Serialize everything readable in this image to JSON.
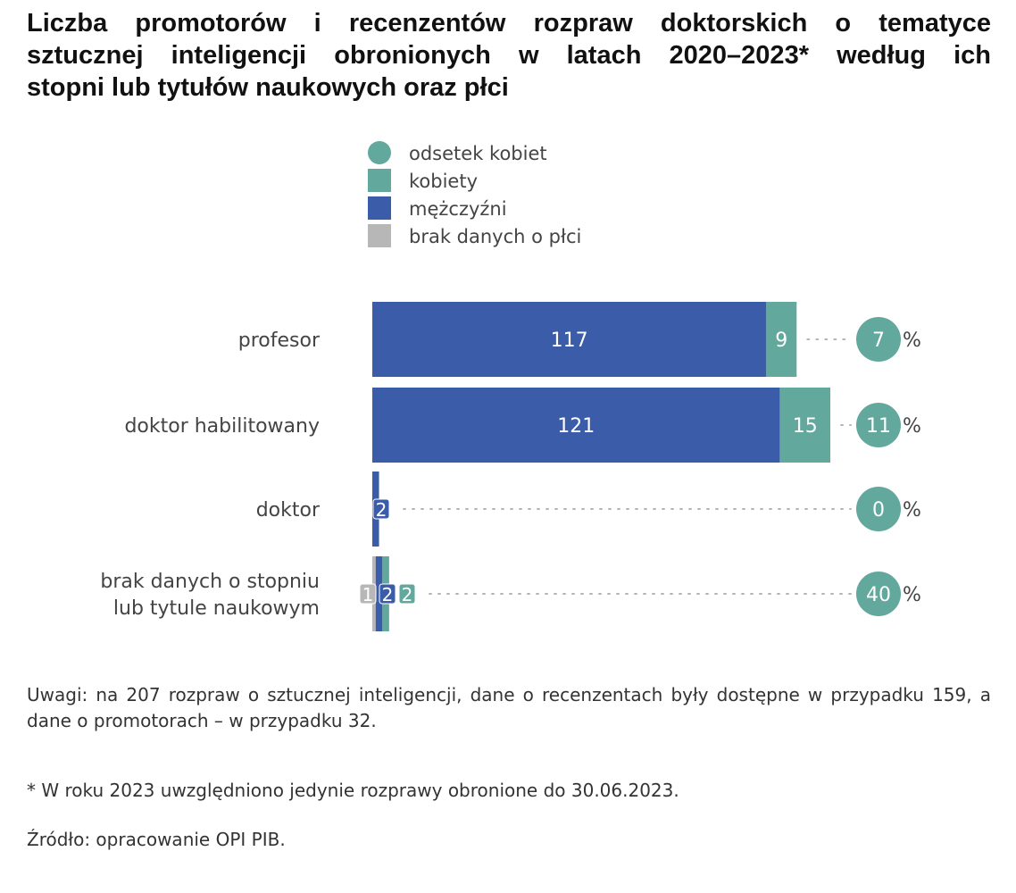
{
  "title_lines": [
    "Liczba promotorów i recenzentów rozpraw doktorskich o tematyce",
    "sztucznej inteligencji obronionych w latach 2020–2023* według ich",
    "stopni lub tytułów naukowych oraz płci"
  ],
  "colors": {
    "men": "#3b5ca8",
    "women": "#62a89d",
    "nodata": "#b7b7b7",
    "dots": "#b5b5b5"
  },
  "chart_data": {
    "type": "bar",
    "stacked": true,
    "orientation": "horizontal",
    "legend": [
      {
        "label": "odsetek kobiet",
        "shape": "circle",
        "color": "#62a89d"
      },
      {
        "label": "kobiety",
        "shape": "square",
        "color": "#62a89d"
      },
      {
        "label": "mężczyźni",
        "shape": "square",
        "color": "#3b5ca8"
      },
      {
        "label": "brak danych o płci",
        "shape": "square",
        "color": "#b7b7b7"
      }
    ],
    "legend_position": "top",
    "categories": [
      {
        "label_lines": [
          "profesor"
        ]
      },
      {
        "label_lines": [
          "doktor habilitowany"
        ]
      },
      {
        "label_lines": [
          "doktor"
        ]
      },
      {
        "label_lines": [
          "brak danych o stopniu",
          "lub tytule naukowym"
        ]
      }
    ],
    "series": [
      {
        "name": "brak danych o płci",
        "values": [
          0,
          0,
          0,
          1
        ]
      },
      {
        "name": "mężczyźni",
        "values": [
          117,
          121,
          2,
          2
        ]
      },
      {
        "name": "kobiety",
        "values": [
          9,
          15,
          0,
          2
        ]
      }
    ],
    "odsetek_kobiet": [
      7,
      11,
      0,
      40
    ],
    "percent_sign": "%",
    "xlim": [
      0,
      140
    ],
    "grid": false
  },
  "notes": "Uwagi: na 207 rozpraw o sztucznej inteligencji, dane o recenzentach były dostępne w przypadku 159, a dane o promotorach – w przypadku 32.",
  "footnote": "* W roku 2023 uwzględniono jedynie rozprawy obronione do 30.06.2023.",
  "source": "Źródło: opracowanie OPI PIB."
}
